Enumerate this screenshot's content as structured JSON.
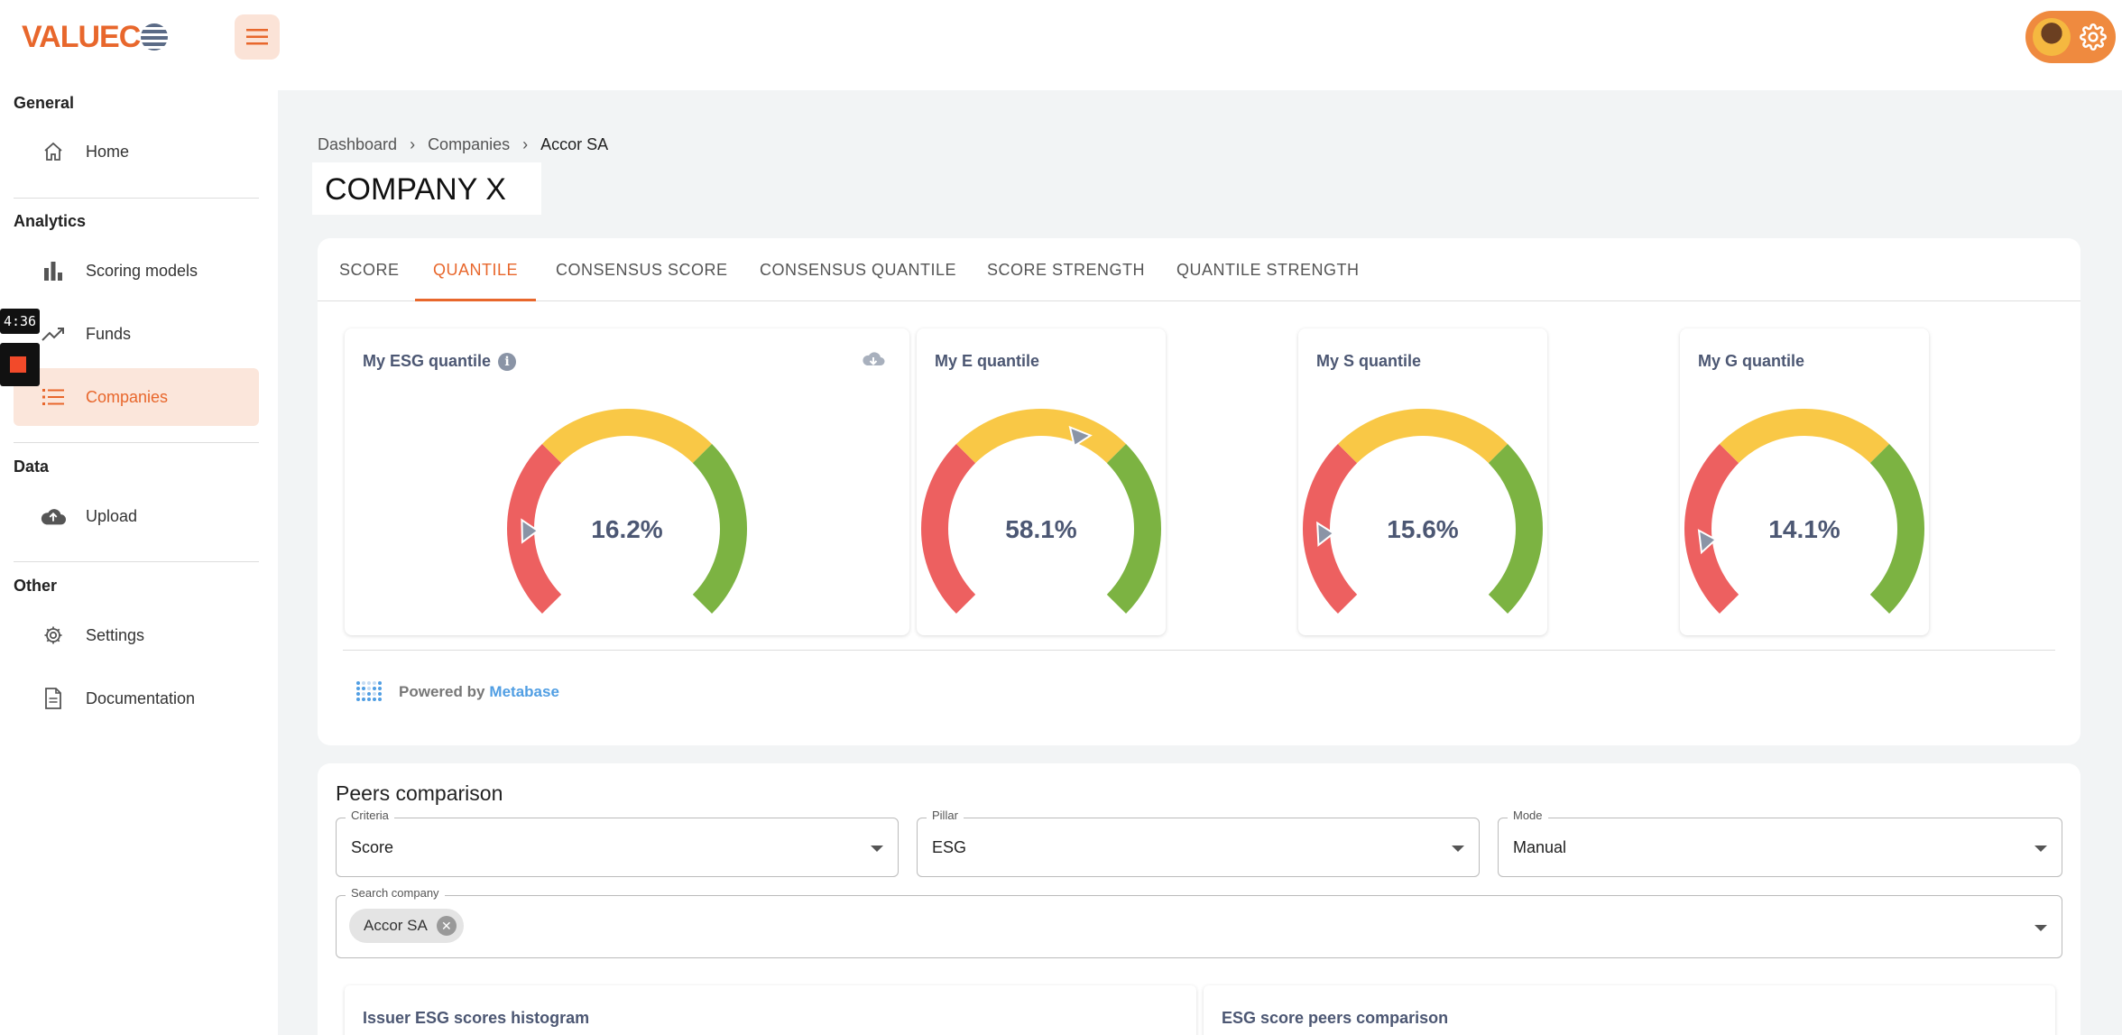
{
  "brand": {
    "logo_text": "VALUEC"
  },
  "sidebar": {
    "sections": [
      {
        "title": "General"
      },
      {
        "title": "Analytics"
      },
      {
        "title": "Data"
      },
      {
        "title": "Other"
      }
    ],
    "items": [
      {
        "label": "Home",
        "icon": "home-icon"
      },
      {
        "label": "Scoring models",
        "icon": "bar-chart-icon"
      },
      {
        "label": "Funds",
        "icon": "trending-up-icon"
      },
      {
        "label": "Companies",
        "icon": "list-icon",
        "active": true
      },
      {
        "label": "Upload",
        "icon": "cloud-upload-icon"
      },
      {
        "label": "Settings",
        "icon": "gear-icon"
      },
      {
        "label": "Documentation",
        "icon": "document-icon"
      }
    ]
  },
  "recorder": {
    "time": "4:36"
  },
  "breadcrumb": {
    "items": [
      "Dashboard",
      "Companies"
    ],
    "current": "Accor SA"
  },
  "company": {
    "name": "COMPANY X"
  },
  "tabs": [
    {
      "label": "SCORE"
    },
    {
      "label": "QUANTILE",
      "active": true
    },
    {
      "label": "CONSENSUS SCORE"
    },
    {
      "label": "CONSENSUS QUANTILE"
    },
    {
      "label": "SCORE STRENGTH"
    },
    {
      "label": "QUANTILE STRENGTH"
    }
  ],
  "gauges": [
    {
      "title": "My ESG quantile",
      "value": 16.2,
      "value_label": "16.2%"
    },
    {
      "title": "My E quantile",
      "value": 58.1,
      "value_label": "58.1%"
    },
    {
      "title": "My S quantile",
      "value": 15.6,
      "value_label": "15.6%"
    },
    {
      "title": "My G quantile",
      "value": 14.1,
      "value_label": "14.1%"
    }
  ],
  "gauge_colors": {
    "red": "#ed6060",
    "yellow": "#f9c846",
    "green": "#7cb342",
    "pointer": "#8a94a6",
    "text": "#4c5773"
  },
  "powered": {
    "prefix": "Powered by",
    "brand": "Metabase"
  },
  "peers": {
    "title": "Peers comparison",
    "criteria": {
      "label": "Criteria",
      "value": "Score"
    },
    "pillar": {
      "label": "Pillar",
      "value": "ESG"
    },
    "mode": {
      "label": "Mode",
      "value": "Manual"
    },
    "search": {
      "label": "Search company",
      "chip": "Accor SA"
    },
    "panels": [
      {
        "title": "Issuer ESG scores histogram"
      },
      {
        "title": "ESG score peers comparison"
      }
    ]
  }
}
